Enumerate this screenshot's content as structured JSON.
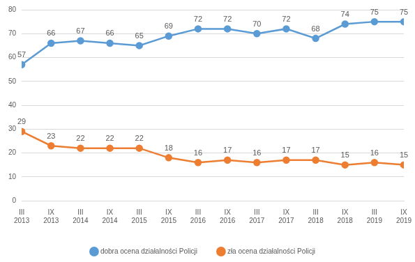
{
  "chart_data": {
    "type": "line",
    "categories": [
      "III 2013",
      "IX 2013",
      "III 2014",
      "IX 2014",
      "III 2015",
      "IX 2015",
      "III 2016",
      "IX 2016",
      "III 2017",
      "IX 2017",
      "III 2018",
      "IX 2018",
      "III 2019",
      "IX 2019"
    ],
    "series": [
      {
        "name": "dobra ocena działalności Policji",
        "color": "#5b9bd5",
        "marker": "circle",
        "values": [
          57,
          66,
          67,
          66,
          65,
          69,
          72,
          72,
          70,
          72,
          68,
          74,
          75,
          75
        ]
      },
      {
        "name": "zła ocena działalności Policji",
        "color": "#ed7d31",
        "marker": "circle",
        "values": [
          29,
          23,
          22,
          22,
          22,
          18,
          16,
          17,
          16,
          17,
          17,
          15,
          16,
          15
        ]
      }
    ],
    "ylim": [
      0,
      80
    ],
    "yticks": [
      0,
      10,
      20,
      30,
      40,
      50,
      60,
      70,
      80
    ],
    "grid": true,
    "legend": "bottom",
    "data_labels": true
  }
}
